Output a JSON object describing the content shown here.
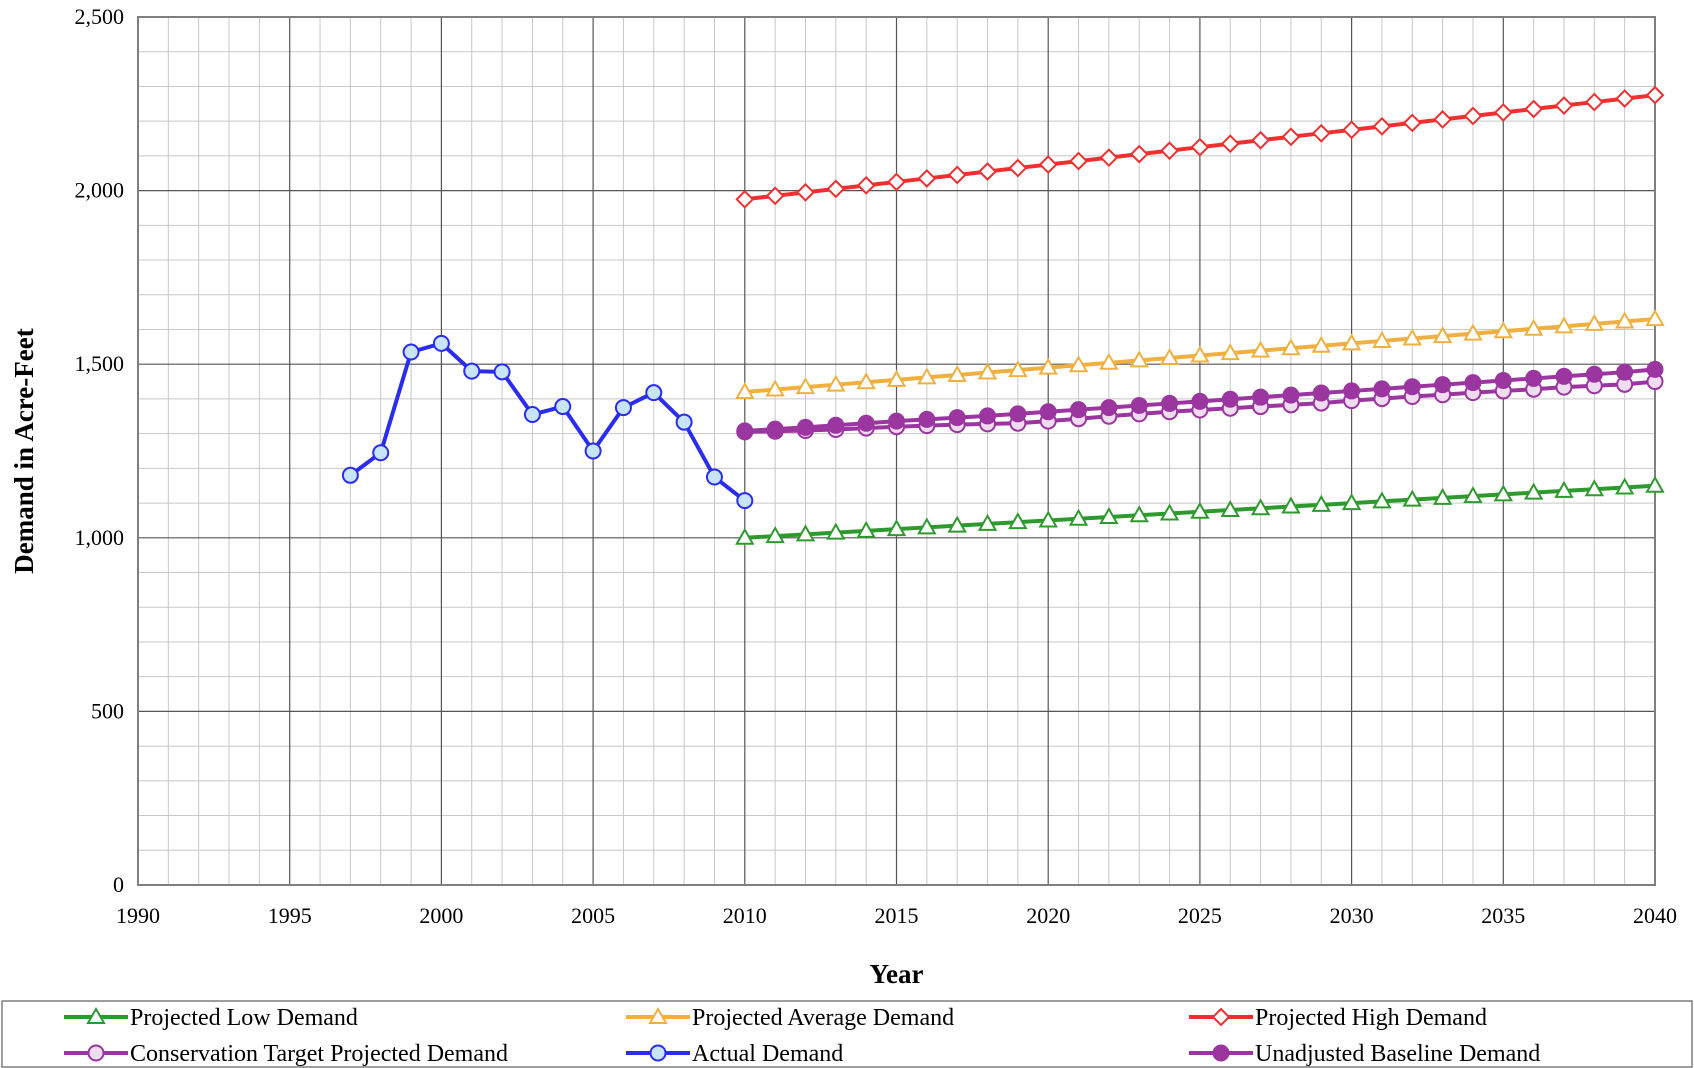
{
  "chart_data": {
    "type": "line",
    "xlabel": "Year",
    "ylabel": "Demand in Acre-Feet",
    "xlim": [
      1990,
      2040
    ],
    "ylim": [
      0,
      2500
    ],
    "x_ticks": [
      "1990",
      "1995",
      "2000",
      "2005",
      "2010",
      "2015",
      "2020",
      "2025",
      "2030",
      "2035",
      "2040"
    ],
    "y_ticks": [
      "0",
      "500",
      "1,000",
      "1,500",
      "2,000",
      "2,500"
    ],
    "grid": true,
    "legend_position": "bottom",
    "series": [
      {
        "name": "Projected Low Demand",
        "color": "#2e9a2e",
        "marker": "triangle-open",
        "x_start": 2010,
        "values": [
          1000,
          1005,
          1010,
          1015,
          1020,
          1025,
          1030,
          1035,
          1040,
          1045,
          1050,
          1055,
          1060,
          1065,
          1070,
          1075,
          1080,
          1085,
          1090,
          1095,
          1100,
          1105,
          1110,
          1115,
          1120,
          1125,
          1130,
          1135,
          1140,
          1145,
          1150
        ]
      },
      {
        "name": "Projected Average Demand",
        "color": "#f0b040",
        "marker": "triangle-open",
        "x_start": 2010,
        "values": [
          1420,
          1427,
          1434,
          1441,
          1448,
          1455,
          1462,
          1469,
          1476,
          1483,
          1490,
          1497,
          1504,
          1511,
          1518,
          1525,
          1532,
          1539,
          1546,
          1553,
          1560,
          1567,
          1574,
          1581,
          1588,
          1595,
          1602,
          1609,
          1616,
          1623,
          1630
        ]
      },
      {
        "name": "Projected High Demand",
        "color": "#f03030",
        "marker": "diamond-open",
        "x_start": 2010,
        "values": [
          1975,
          1985,
          1995,
          2005,
          2015,
          2025,
          2035,
          2045,
          2055,
          2065,
          2075,
          2085,
          2095,
          2105,
          2115,
          2125,
          2135,
          2145,
          2155,
          2165,
          2175,
          2185,
          2195,
          2205,
          2215,
          2225,
          2235,
          2245,
          2255,
          2265,
          2275
        ]
      },
      {
        "name": "Conservation Target Projected Demand",
        "color": "#9b35a0",
        "marker": "circle-open-light",
        "x_start": 2010,
        "values": [
          1305,
          1307,
          1309,
          1312,
          1316,
          1320,
          1323,
          1326,
          1328,
          1330,
          1336,
          1343,
          1350,
          1357,
          1363,
          1368,
          1373,
          1378,
          1383,
          1388,
          1395,
          1401,
          1407,
          1412,
          1418,
          1423,
          1428,
          1434,
          1438,
          1442,
          1450
        ]
      },
      {
        "name": "Actual Demand",
        "color": "#2a2df0",
        "marker": "circle-open-blue",
        "x_start": 1997,
        "values": [
          1180,
          1245,
          1535,
          1560,
          1480,
          1478,
          1355,
          1378,
          1250,
          1375,
          1418,
          1333,
          1175,
          1107
        ]
      },
      {
        "name": "Unadjusted Baseline Demand",
        "color": "#9b35a0",
        "marker": "circle-filled",
        "x_start": 2010,
        "values": [
          1308,
          1313,
          1318,
          1324,
          1330,
          1336,
          1341,
          1346,
          1351,
          1357,
          1363,
          1369,
          1375,
          1381,
          1387,
          1393,
          1399,
          1405,
          1411,
          1417,
          1423,
          1429,
          1435,
          1441,
          1447,
          1453,
          1459,
          1465,
          1471,
          1477,
          1485
        ]
      }
    ]
  }
}
